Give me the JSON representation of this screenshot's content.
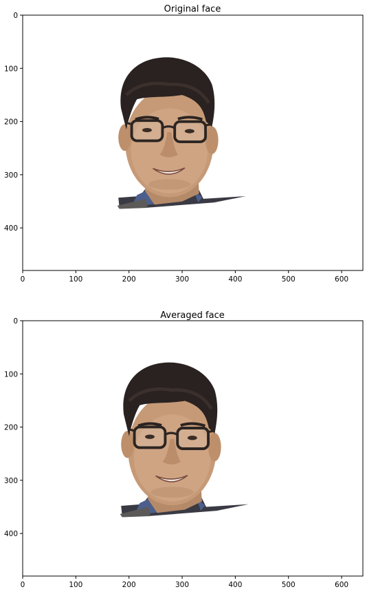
{
  "chart_data": [
    {
      "type": "image",
      "title": "Original face",
      "xlim": [
        0,
        640
      ],
      "ylim": [
        480,
        0
      ],
      "xticks": [
        0,
        100,
        200,
        300,
        400,
        500,
        600
      ],
      "yticks": [
        0,
        100,
        200,
        300,
        400
      ],
      "image_content": "face-photo"
    },
    {
      "type": "image",
      "title": "Averaged face",
      "xlim": [
        0,
        640
      ],
      "ylim": [
        480,
        0
      ],
      "xticks": [
        0,
        100,
        200,
        300,
        400,
        500,
        600
      ],
      "yticks": [
        0,
        100,
        200,
        300,
        400
      ],
      "image_content": "face-photo"
    }
  ]
}
